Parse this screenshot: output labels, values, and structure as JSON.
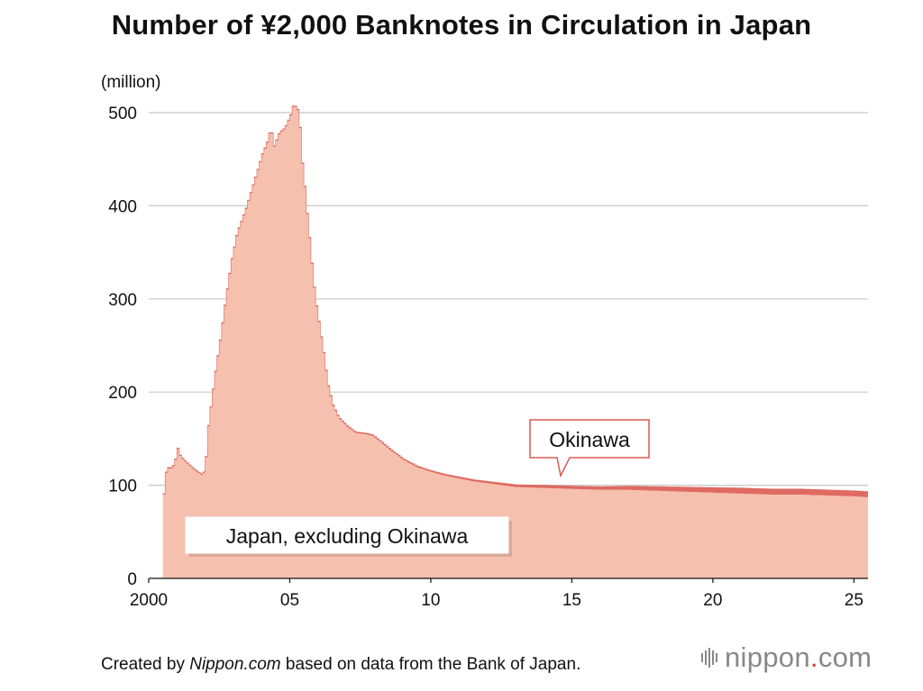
{
  "chart_data": {
    "type": "area",
    "title": "Number of ¥2,000 Banknotes in Circulation in Japan",
    "unit_label": "(million)",
    "ylim": [
      0,
      500
    ],
    "yticks": [
      0,
      100,
      200,
      300,
      400,
      500
    ],
    "xlim": [
      2000.5,
      2025.5
    ],
    "xticks": [
      {
        "value": 2000,
        "label": "2000"
      },
      {
        "value": 2005,
        "label": "05"
      },
      {
        "value": 2010,
        "label": "10"
      },
      {
        "value": 2015,
        "label": "15"
      },
      {
        "value": 2020,
        "label": "20"
      },
      {
        "value": 2025,
        "label": "25"
      }
    ],
    "grid": true,
    "series": [
      {
        "name": "Japan, excluding Okinawa",
        "color": "#f6c0ae",
        "points": [
          [
            2000.5,
            90
          ],
          [
            2000.6,
            118
          ],
          [
            2000.8,
            118
          ],
          [
            2000.9,
            125
          ],
          [
            2001.0,
            139
          ],
          [
            2001.1,
            130
          ],
          [
            2001.3,
            124
          ],
          [
            2001.6,
            116
          ],
          [
            2001.9,
            110
          ],
          [
            2002.0,
            130
          ],
          [
            2002.1,
            170
          ],
          [
            2002.2,
            190
          ],
          [
            2002.3,
            215
          ],
          [
            2002.5,
            255
          ],
          [
            2002.7,
            300
          ],
          [
            2002.9,
            340
          ],
          [
            2003.1,
            370
          ],
          [
            2003.4,
            395
          ],
          [
            2003.7,
            425
          ],
          [
            2004.0,
            455
          ],
          [
            2004.2,
            470
          ],
          [
            2004.3,
            485
          ],
          [
            2004.4,
            462
          ],
          [
            2004.6,
            478
          ],
          [
            2004.8,
            483
          ],
          [
            2004.9,
            490
          ],
          [
            2005.0,
            497
          ],
          [
            2005.1,
            508
          ],
          [
            2005.2,
            505
          ],
          [
            2005.3,
            500
          ],
          [
            2005.4,
            450
          ],
          [
            2005.5,
            420
          ],
          [
            2005.6,
            385
          ],
          [
            2005.7,
            355
          ],
          [
            2005.8,
            320
          ],
          [
            2005.9,
            295
          ],
          [
            2006.0,
            275
          ],
          [
            2006.1,
            255
          ],
          [
            2006.2,
            235
          ],
          [
            2006.3,
            210
          ],
          [
            2006.5,
            185
          ],
          [
            2006.7,
            172
          ],
          [
            2007.0,
            163
          ],
          [
            2007.3,
            156
          ],
          [
            2007.6,
            155
          ],
          [
            2007.9,
            153
          ],
          [
            2008.2,
            146
          ],
          [
            2008.6,
            136
          ],
          [
            2009.0,
            127
          ],
          [
            2009.5,
            119
          ],
          [
            2010.0,
            114
          ],
          [
            2010.5,
            110
          ],
          [
            2011.0,
            107
          ],
          [
            2011.5,
            104
          ],
          [
            2012.0,
            102
          ],
          [
            2012.5,
            100
          ],
          [
            2013.0,
            98
          ],
          [
            2014.0,
            97
          ],
          [
            2015.0,
            96
          ],
          [
            2016.0,
            95
          ],
          [
            2017.0,
            95
          ],
          [
            2018.0,
            94
          ],
          [
            2019.0,
            93
          ],
          [
            2020.0,
            92
          ],
          [
            2021.0,
            91
          ],
          [
            2022.0,
            90
          ],
          [
            2023.0,
            90
          ],
          [
            2024.0,
            89
          ],
          [
            2025.0,
            88
          ],
          [
            2025.5,
            87
          ]
        ]
      },
      {
        "name": "Okinawa",
        "color": "#e06a62",
        "points": [
          [
            2000.5,
            1
          ],
          [
            2005.0,
            1
          ],
          [
            2010.0,
            1.5
          ],
          [
            2012.0,
            2
          ],
          [
            2013.0,
            2.5
          ],
          [
            2014.0,
            3
          ],
          [
            2015.0,
            3
          ],
          [
            2016.0,
            3.5
          ],
          [
            2017.0,
            4
          ],
          [
            2018.0,
            4.5
          ],
          [
            2019.0,
            5
          ],
          [
            2020.0,
            5.5
          ],
          [
            2021.0,
            6
          ],
          [
            2022.0,
            6
          ],
          [
            2023.0,
            6
          ],
          [
            2024.0,
            6
          ],
          [
            2025.0,
            6
          ],
          [
            2025.5,
            6
          ]
        ]
      }
    ],
    "callouts": {
      "japan": "Japan, excluding Okinawa",
      "okinawa": "Okinawa"
    }
  },
  "footer": {
    "prefix": "Created by ",
    "source_name": "Nippon.com",
    "suffix": " based on data from the Bank of Japan."
  },
  "logo": {
    "name": "nippon",
    "dot": ".",
    "tld": "com"
  },
  "colors": {
    "grid": "#c8c8c8",
    "japan_fill": "#f6c0ae",
    "japan_edge": "#d85b54",
    "okinawa": "#e06a62",
    "callout_border": "#d85b54",
    "logo_accent": "#e03a3e"
  }
}
